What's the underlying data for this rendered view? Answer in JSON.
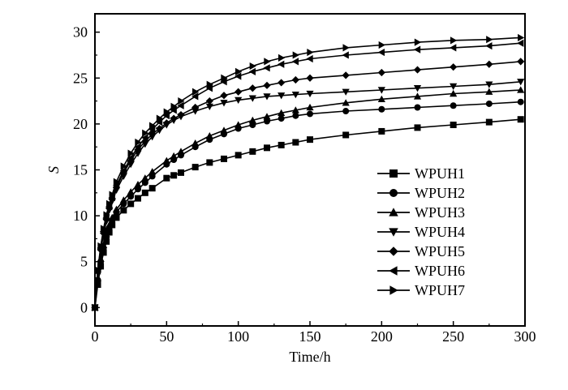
{
  "chart_data": {
    "type": "line",
    "xlabel": "Time/h",
    "ylabel": "S",
    "xlim": [
      0,
      300
    ],
    "ylim": [
      -2,
      32
    ],
    "xticks": [
      0,
      50,
      100,
      150,
      200,
      250,
      300
    ],
    "yticks": [
      0,
      5,
      10,
      15,
      20,
      25,
      30
    ],
    "legend_position": "right-middle",
    "line_color": "#000000",
    "series": [
      {
        "name": "WPUH1",
        "marker": "square",
        "x": [
          0,
          2,
          4,
          6,
          8,
          10,
          12,
          15,
          20,
          25,
          30,
          35,
          40,
          50,
          55,
          60,
          70,
          80,
          90,
          100,
          110,
          120,
          130,
          140,
          150,
          175,
          200,
          225,
          250,
          275,
          297
        ],
        "y": [
          0,
          2.5,
          4.5,
          6,
          7.2,
          8.2,
          9,
          9.8,
          10.6,
          11.3,
          11.9,
          12.5,
          13,
          14.1,
          14.4,
          14.7,
          15.3,
          15.8,
          16.2,
          16.6,
          17,
          17.4,
          17.7,
          18,
          18.3,
          18.8,
          19.2,
          19.6,
          19.9,
          20.2,
          20.5
        ]
      },
      {
        "name": "WPUH2",
        "marker": "circle",
        "x": [
          0,
          2,
          4,
          6,
          8,
          10,
          12,
          15,
          20,
          25,
          30,
          35,
          40,
          50,
          55,
          60,
          70,
          80,
          90,
          100,
          110,
          120,
          130,
          140,
          150,
          175,
          200,
          225,
          250,
          275,
          297
        ],
        "y": [
          0,
          3,
          5,
          6.5,
          7.7,
          8.7,
          9.5,
          10.4,
          11.3,
          12.1,
          12.9,
          13.6,
          14.3,
          15.6,
          16.1,
          16.6,
          17.5,
          18.3,
          18.9,
          19.5,
          19.9,
          20.3,
          20.6,
          20.9,
          21.1,
          21.4,
          21.6,
          21.8,
          22,
          22.2,
          22.4
        ]
      },
      {
        "name": "WPUH3",
        "marker": "triangle-up",
        "x": [
          0,
          2,
          4,
          6,
          8,
          10,
          12,
          15,
          20,
          25,
          30,
          35,
          40,
          50,
          55,
          60,
          70,
          80,
          90,
          100,
          110,
          120,
          130,
          140,
          150,
          175,
          200,
          225,
          250,
          275,
          297
        ],
        "y": [
          0,
          3.2,
          5.3,
          6.8,
          8,
          9,
          9.8,
          10.7,
          11.7,
          12.6,
          13.4,
          14.1,
          14.8,
          16,
          16.5,
          17,
          17.9,
          18.7,
          19.3,
          19.9,
          20.4,
          20.8,
          21.2,
          21.5,
          21.8,
          22.3,
          22.7,
          23,
          23.3,
          23.5,
          23.7
        ]
      },
      {
        "name": "WPUH4",
        "marker": "triangle-down",
        "x": [
          0,
          2,
          4,
          6,
          8,
          10,
          12,
          15,
          20,
          25,
          30,
          35,
          40,
          45,
          50,
          55,
          60,
          70,
          80,
          90,
          100,
          110,
          120,
          130,
          140,
          150,
          175,
          200,
          225,
          250,
          275,
          297
        ],
        "y": [
          0,
          3.8,
          6.2,
          8,
          9.4,
          10.6,
          11.6,
          12.8,
          14.3,
          15.6,
          16.8,
          17.8,
          18.6,
          19.3,
          19.9,
          20.4,
          20.8,
          21.4,
          21.9,
          22.3,
          22.6,
          22.8,
          23,
          23.1,
          23.2,
          23.3,
          23.5,
          23.7,
          23.9,
          24.1,
          24.3,
          24.6
        ]
      },
      {
        "name": "WPUH5",
        "marker": "diamond",
        "x": [
          0,
          2,
          4,
          6,
          8,
          10,
          12,
          15,
          20,
          25,
          30,
          35,
          40,
          45,
          50,
          55,
          60,
          70,
          80,
          90,
          100,
          110,
          120,
          130,
          140,
          150,
          175,
          200,
          225,
          250,
          275,
          297
        ],
        "y": [
          0,
          3.9,
          6.3,
          8.1,
          9.6,
          10.8,
          11.8,
          13.1,
          14.7,
          16,
          17.2,
          18.1,
          18.9,
          19.5,
          20.1,
          20.6,
          21,
          21.8,
          22.5,
          23.1,
          23.5,
          23.9,
          24.2,
          24.5,
          24.8,
          25,
          25.3,
          25.6,
          25.9,
          26.2,
          26.5,
          26.8
        ]
      },
      {
        "name": "WPUH6",
        "marker": "triangle-left",
        "x": [
          0,
          2,
          4,
          6,
          8,
          10,
          12,
          15,
          20,
          25,
          30,
          35,
          40,
          45,
          50,
          55,
          60,
          70,
          80,
          90,
          100,
          110,
          120,
          130,
          140,
          150,
          175,
          200,
          225,
          250,
          275,
          297
        ],
        "y": [
          0,
          4,
          6.5,
          8.3,
          9.8,
          11,
          12,
          13.3,
          14.9,
          16.3,
          17.5,
          18.5,
          19.4,
          20.2,
          20.9,
          21.5,
          22,
          23,
          23.9,
          24.6,
          25.2,
          25.7,
          26.1,
          26.5,
          26.8,
          27.1,
          27.5,
          27.8,
          28.1,
          28.3,
          28.5,
          28.8
        ]
      },
      {
        "name": "WPUH7",
        "marker": "triangle-right",
        "x": [
          0,
          2,
          4,
          6,
          8,
          10,
          12,
          15,
          20,
          25,
          30,
          35,
          40,
          45,
          50,
          55,
          60,
          70,
          80,
          90,
          100,
          110,
          120,
          130,
          140,
          150,
          175,
          200,
          225,
          250,
          275,
          297
        ],
        "y": [
          0,
          4.1,
          6.7,
          8.6,
          10.1,
          11.3,
          12.3,
          13.7,
          15.4,
          16.8,
          18,
          19,
          19.8,
          20.6,
          21.3,
          21.9,
          22.5,
          23.5,
          24.3,
          25,
          25.7,
          26.3,
          26.8,
          27.2,
          27.5,
          27.8,
          28.3,
          28.6,
          28.9,
          29.1,
          29.2,
          29.4
        ]
      }
    ]
  }
}
